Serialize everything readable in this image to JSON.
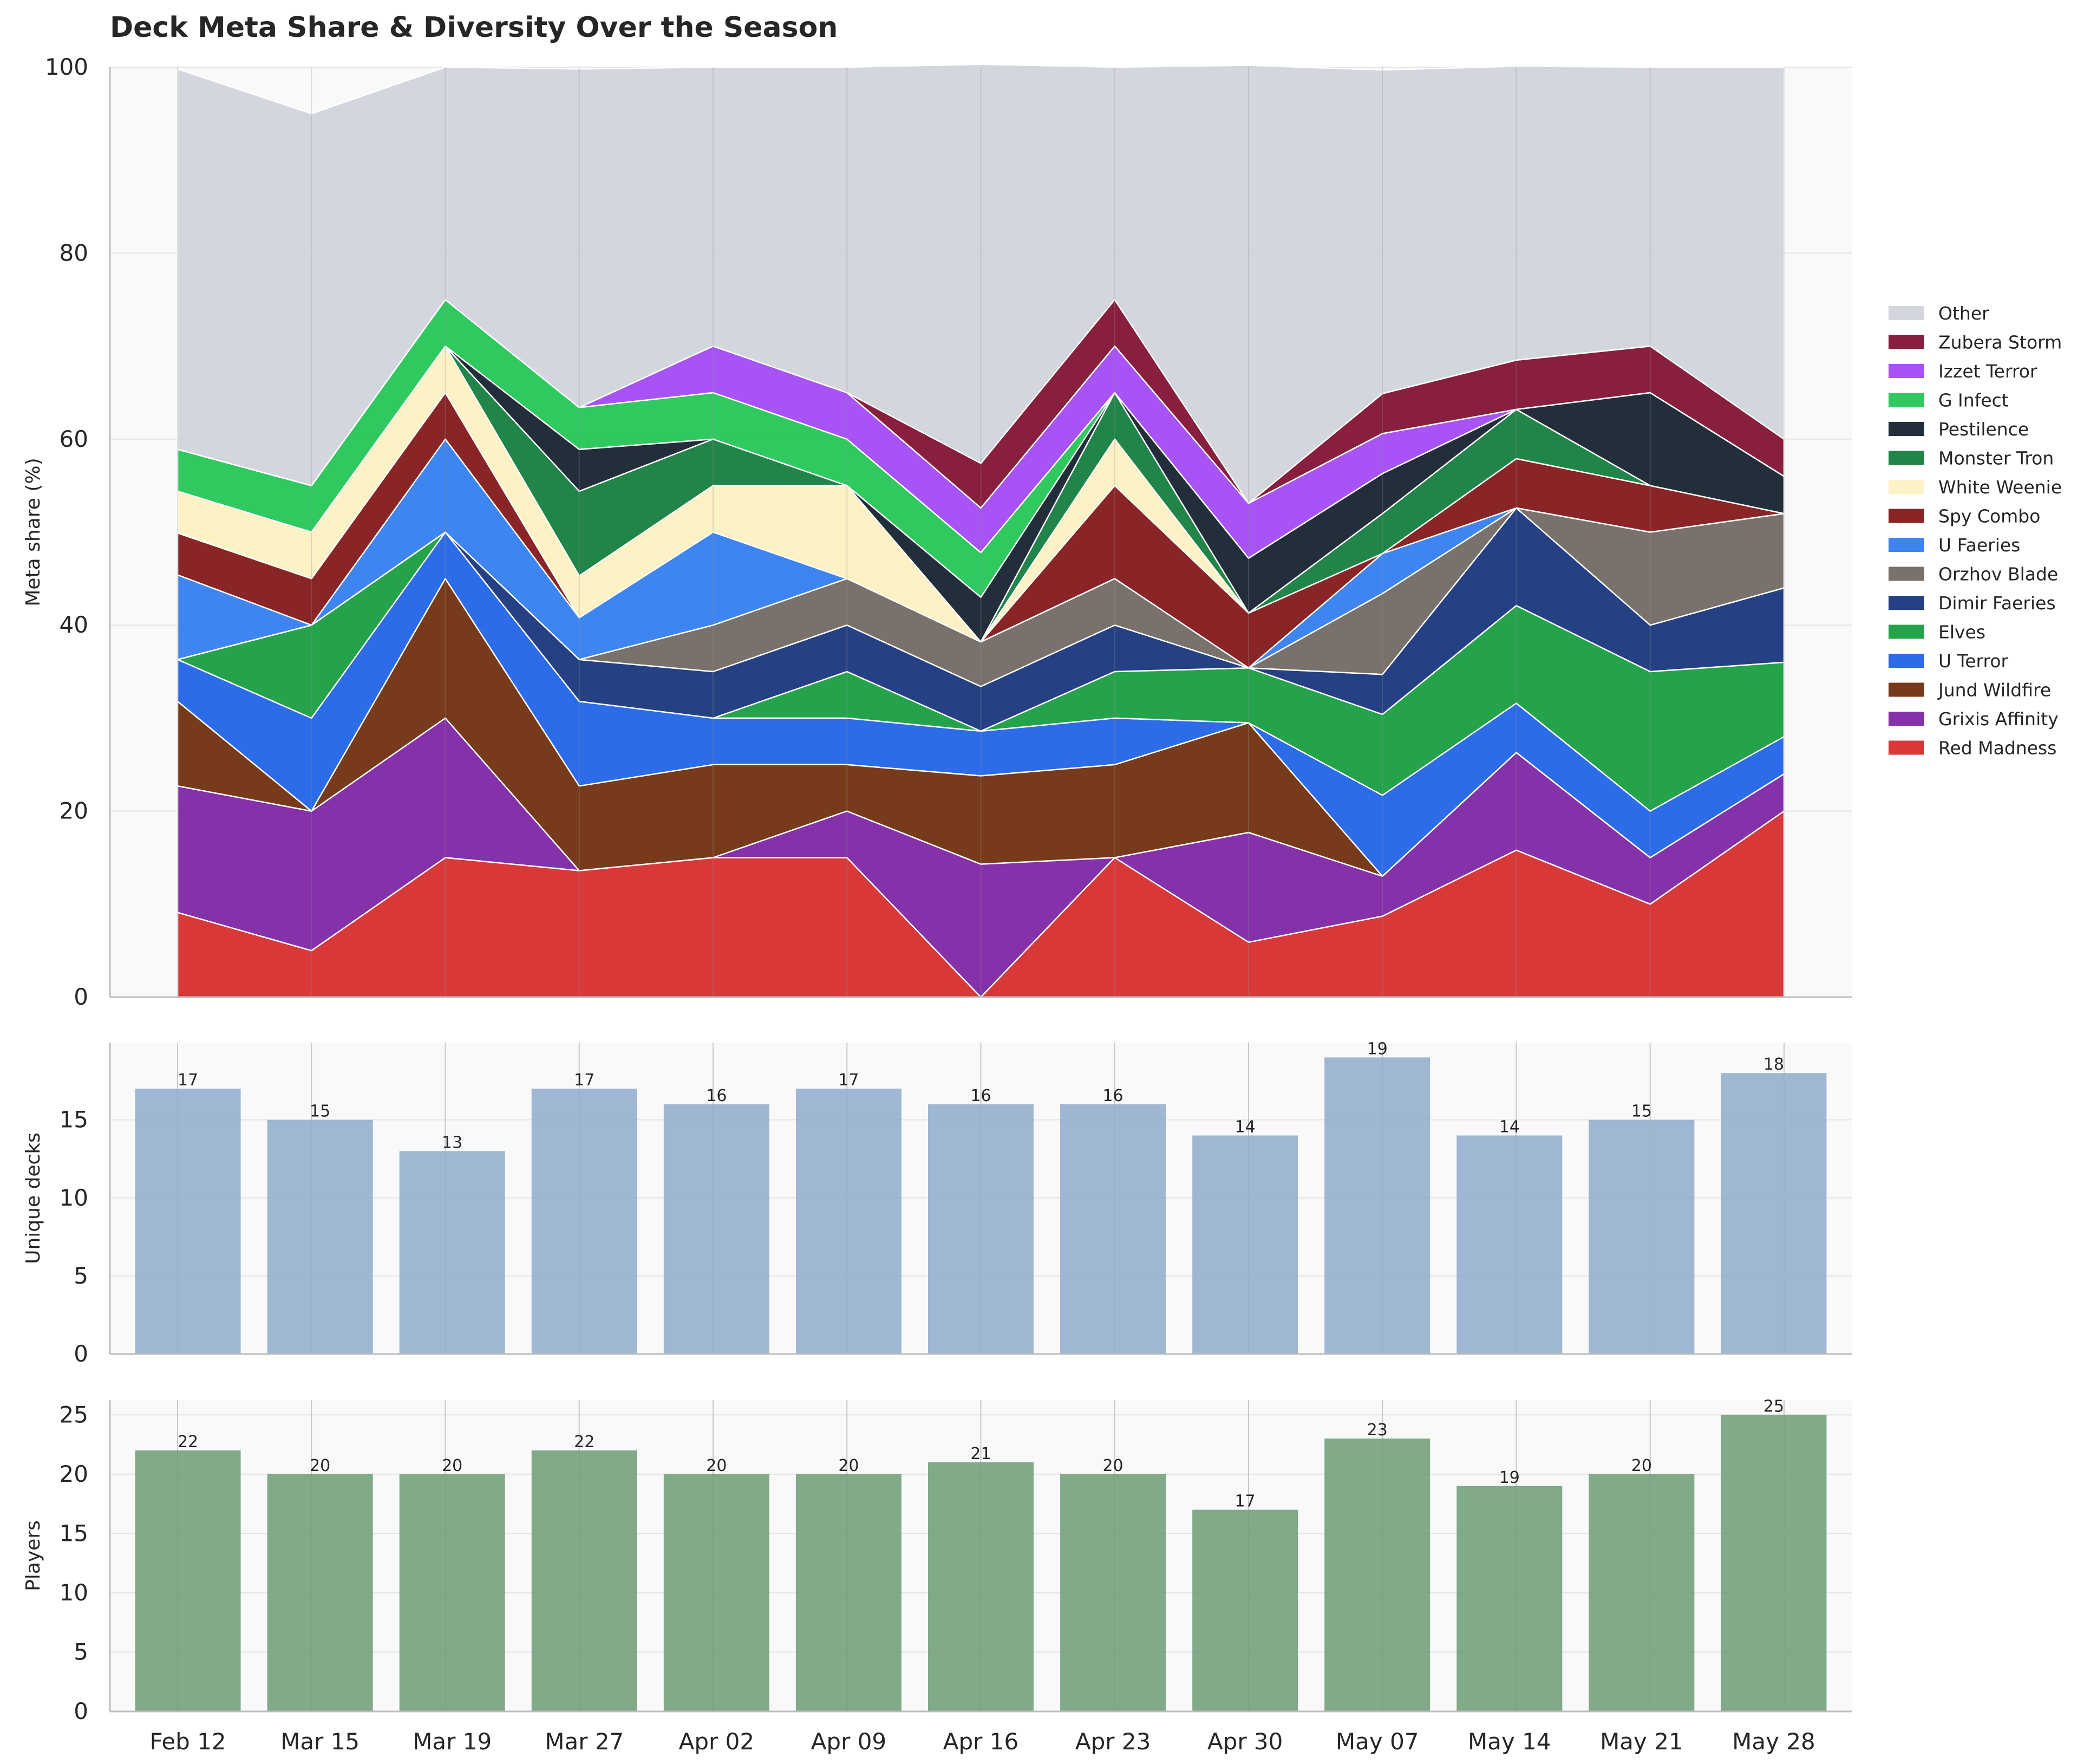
{
  "chart_data": [
    {
      "type": "area",
      "stacked": true,
      "title": "Deck Meta Share & Diversity Over the Season",
      "ylabel": "Meta share (%)",
      "ylim": [
        0,
        100
      ],
      "yticks": [
        0,
        20,
        40,
        60,
        80,
        100
      ],
      "grid": true,
      "legend_position": "right",
      "categories": [
        "Feb 12",
        "Mar 15",
        "Mar 19",
        "Mar 27",
        "Apr 02",
        "Apr 09",
        "Apr 16",
        "Apr 23",
        "Apr 30",
        "May 07",
        "May 14",
        "May 21",
        "May 28"
      ],
      "series": [
        {
          "name": "Red Madness",
          "color": "#d62728",
          "values": [
            9.1,
            5,
            15,
            13.6,
            15,
            15,
            0,
            15,
            5.9,
            8.7,
            15.8,
            10,
            20
          ]
        },
        {
          "name": "Grixis Affinity",
          "color": "#7b1fa2",
          "values": [
            13.6,
            15,
            15,
            0,
            0,
            5,
            14.3,
            0,
            11.8,
            4.3,
            10.5,
            5,
            4
          ]
        },
        {
          "name": "Jund Wildfire",
          "color": "#6b2a08",
          "values": [
            9.1,
            0,
            15,
            9.1,
            10,
            5,
            9.5,
            10,
            11.8,
            0,
            0,
            0,
            0
          ]
        },
        {
          "name": "U Terror",
          "color": "#1a5fe6",
          "values": [
            4.5,
            10,
            5,
            9.1,
            5,
            5,
            4.8,
            5,
            0,
            8.7,
            5.3,
            5,
            4
          ]
        },
        {
          "name": "Elves",
          "color": "#119b3c",
          "values": [
            0,
            10,
            0,
            0,
            0,
            5,
            0,
            5,
            5.9,
            8.7,
            10.5,
            15,
            8
          ]
        },
        {
          "name": "Dimir Faeries",
          "color": "#14307a",
          "values": [
            0,
            0,
            0,
            4.5,
            5,
            5,
            4.8,
            5,
            0,
            4.3,
            10.5,
            5,
            8
          ]
        },
        {
          "name": "Orzhov Blade",
          "color": "#6e655e",
          "values": [
            0,
            0,
            0,
            0,
            5,
            5,
            4.8,
            5,
            0,
            8.7,
            0,
            10,
            8
          ]
        },
        {
          "name": "U Faeries",
          "color": "#2f7bf0",
          "values": [
            9.1,
            0,
            10,
            4.5,
            10,
            0,
            0,
            0,
            0,
            4.3,
            0,
            0,
            0
          ]
        },
        {
          "name": "Spy Combo",
          "color": "#7f1214",
          "values": [
            4.5,
            5,
            5,
            0,
            0,
            0,
            0,
            10,
            5.9,
            0,
            5.3,
            5,
            0
          ]
        },
        {
          "name": "White Weenie",
          "color": "#fdf1c0",
          "values": [
            4.5,
            5,
            5,
            4.5,
            5,
            10,
            0,
            5,
            0,
            0,
            0,
            0,
            0
          ]
        },
        {
          "name": "Monster Tron",
          "color": "#0e7a3a",
          "values": [
            0,
            0,
            0,
            9.1,
            5,
            0,
            0,
            5,
            0,
            4.3,
            5.3,
            0,
            0
          ]
        },
        {
          "name": "Pestilence",
          "color": "#101c2a",
          "values": [
            0,
            0,
            0,
            4.5,
            0,
            0,
            4.8,
            0,
            5.9,
            4.3,
            0,
            10,
            4
          ]
        },
        {
          "name": "G Infect",
          "color": "#1ec452",
          "values": [
            4.5,
            5,
            5,
            4.5,
            5,
            5,
            4.8,
            0,
            0,
            0,
            0,
            0,
            0
          ]
        },
        {
          "name": "Izzet Terror",
          "color": "#a044f5",
          "values": [
            0,
            0,
            0,
            0,
            5,
            5,
            4.8,
            5,
            5.9,
            4.3,
            0,
            0,
            0
          ]
        },
        {
          "name": "Zubera Storm",
          "color": "#7e0c2e",
          "values": [
            0,
            0,
            0,
            0,
            0,
            0,
            4.8,
            5,
            0,
            4.3,
            5.3,
            5,
            4
          ]
        },
        {
          "name": "Other",
          "color": "#cfd3d9",
          "values": [
            40.9,
            40,
            25,
            36.4,
            30,
            35,
            42.9,
            25,
            47.1,
            34.8,
            31.6,
            30,
            40
          ]
        }
      ]
    },
    {
      "type": "bar",
      "ylabel": "Unique decks",
      "ylim": [
        0,
        19.95
      ],
      "yticks": [
        0,
        5,
        10,
        15
      ],
      "color": "#92adcc",
      "grid": true,
      "categories": [
        "Feb 12",
        "Mar 15",
        "Mar 19",
        "Mar 27",
        "Apr 02",
        "Apr 09",
        "Apr 16",
        "Apr 23",
        "Apr 30",
        "May 07",
        "May 14",
        "May 21",
        "May 28"
      ],
      "values": [
        17,
        15,
        13,
        17,
        16,
        17,
        16,
        16,
        14,
        19,
        14,
        15,
        18
      ],
      "data_labels": [
        "17",
        "15",
        "13",
        "17",
        "16",
        "17",
        "16",
        "16",
        "14",
        "19",
        "14",
        "15",
        "18"
      ]
    },
    {
      "type": "bar",
      "ylabel": "Players",
      "ylim": [
        0,
        26.25
      ],
      "yticks": [
        0,
        5,
        10,
        15,
        20,
        25
      ],
      "color": "#709e79",
      "grid": true,
      "categories": [
        "Feb 12",
        "Mar 15",
        "Mar 19",
        "Mar 27",
        "Apr 02",
        "Apr 09",
        "Apr 16",
        "Apr 23",
        "Apr 30",
        "May 07",
        "May 14",
        "May 21",
        "May 28"
      ],
      "values": [
        22,
        20,
        20,
        22,
        20,
        20,
        21,
        20,
        17,
        23,
        19,
        20,
        25
      ],
      "data_labels": [
        "22",
        "20",
        "20",
        "22",
        "20",
        "20",
        "21",
        "20",
        "17",
        "23",
        "19",
        "20",
        "25"
      ]
    }
  ]
}
